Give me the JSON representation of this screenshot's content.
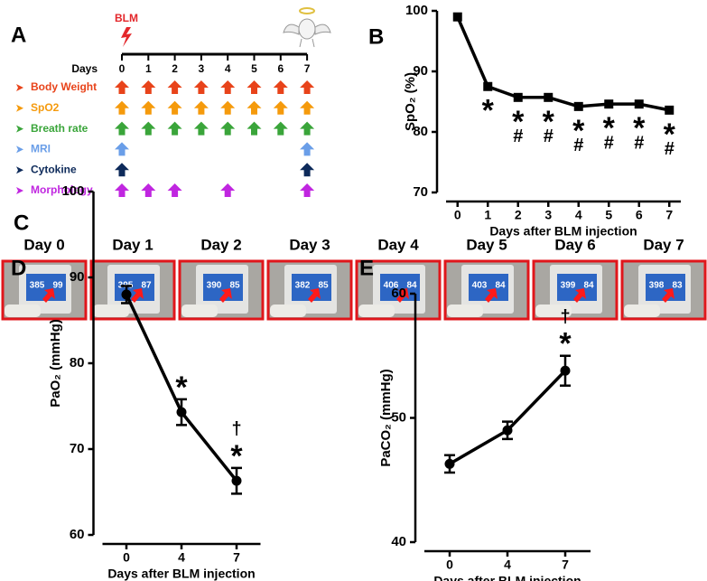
{
  "panel_a": {
    "label": "A",
    "drug": "BLM",
    "days_label": "Days",
    "days": [
      0,
      1,
      2,
      3,
      4,
      5,
      6,
      7
    ],
    "rows": [
      {
        "name": "Body Weight",
        "color": "#e8431a",
        "days": [
          0,
          1,
          2,
          3,
          4,
          5,
          6,
          7
        ]
      },
      {
        "name": "SpO2",
        "color": "#f59a0c",
        "days": [
          0,
          1,
          2,
          3,
          4,
          5,
          6,
          7
        ]
      },
      {
        "name": "Breath rate",
        "color": "#3aa53a",
        "days": [
          0,
          1,
          2,
          3,
          4,
          5,
          6,
          7
        ]
      },
      {
        "name": "MRI",
        "color": "#6a9ee8",
        "days": [
          0,
          7
        ]
      },
      {
        "name": "Cytokine",
        "color": "#0d2a5a",
        "days": [
          0,
          7
        ]
      },
      {
        "name": "Morphology",
        "color": "#c026e0",
        "days": [
          0,
          1,
          2,
          4,
          7
        ]
      }
    ]
  },
  "panel_c": {
    "label": "C",
    "frames": [
      {
        "title": "Day 0",
        "readings": [
          "385",
          "99"
        ]
      },
      {
        "title": "Day 1",
        "readings": [
          "395",
          "87"
        ]
      },
      {
        "title": "Day 2",
        "readings": [
          "390",
          "85"
        ]
      },
      {
        "title": "Day 3",
        "readings": [
          "382",
          "85"
        ]
      },
      {
        "title": "Day 4",
        "readings": [
          "406",
          "84"
        ]
      },
      {
        "title": "Day 5",
        "readings": [
          "403",
          "84"
        ]
      },
      {
        "title": "Day 6",
        "readings": [
          "399",
          "84"
        ]
      },
      {
        "title": "Day 7",
        "readings": [
          "398",
          "83"
        ]
      }
    ]
  },
  "chart_data": [
    {
      "type": "line",
      "label": "B",
      "ylabel": "SpO₂ (%)",
      "xlabel": "Days after BLM injection",
      "categories": [
        "0",
        "1",
        "2",
        "3",
        "4",
        "5",
        "6",
        "7"
      ],
      "values": [
        99,
        87.5,
        85.7,
        85.7,
        84.2,
        84.6,
        84.6,
        83.6
      ],
      "marker": "square",
      "color": "#000000",
      "ylim": [
        70,
        100
      ],
      "yticks": [
        70,
        80,
        90,
        100
      ],
      "annotation_position": "below",
      "annotations": [
        [],
        [
          "*"
        ],
        [
          "*",
          "#"
        ],
        [
          "*",
          "#"
        ],
        [
          "*",
          "#"
        ],
        [
          "*",
          "#"
        ],
        [
          "*",
          "#"
        ],
        [
          "*",
          "#"
        ]
      ]
    },
    {
      "type": "line",
      "label": "D",
      "ylabel": "PaO₂ (mmHg)",
      "xlabel": "Days after BLM injection",
      "categories": [
        "0",
        "4",
        "7"
      ],
      "values": [
        88,
        74.3,
        66.3
      ],
      "errors": [
        1,
        1.5,
        1.5
      ],
      "marker": "circle",
      "color": "#000000",
      "ylim": [
        60,
        100
      ],
      "yticks": [
        60,
        70,
        80,
        90,
        100
      ],
      "annotation_position": "above",
      "annotations": [
        [],
        [
          "*"
        ],
        [
          "*",
          "†"
        ]
      ]
    },
    {
      "type": "line",
      "label": "E",
      "ylabel": "PaCO₂ (mmHg)",
      "xlabel": "Days after BLM injection",
      "categories": [
        "0",
        "4",
        "7"
      ],
      "values": [
        46.3,
        49,
        53.8
      ],
      "errors": [
        0.7,
        0.7,
        1.2
      ],
      "marker": "circle",
      "color": "#000000",
      "ylim": [
        40,
        60
      ],
      "yticks": [
        40,
        50,
        60
      ],
      "annotation_position": "above",
      "annotations": [
        [],
        [],
        [
          "*",
          "†"
        ]
      ]
    }
  ]
}
